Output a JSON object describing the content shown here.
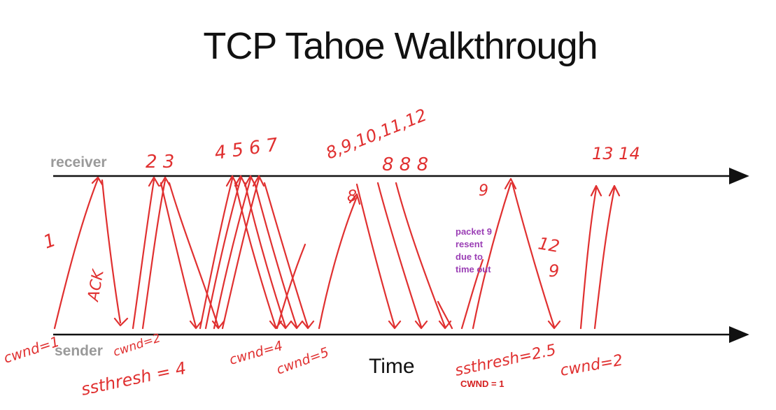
{
  "title": "TCP Tahoe Walkthrough",
  "timeline": {
    "receiver_label": "receiver",
    "sender_label": "sender",
    "time_label": "Time"
  },
  "printed_notes": {
    "resent_note": [
      "packet 9",
      "resent",
      "due to",
      "time out"
    ],
    "cwnd_reset": "CWND = 1"
  },
  "handwritten": {
    "send_1": "1",
    "ack_1": "ACK",
    "sent_2_3": "2 3",
    "sent_4_7": "4 5 6 7",
    "sent_8_12": "8,9,10,11,12",
    "acks_8": "8  8  8",
    "ack_8_single": "8",
    "packet_9_up": "9",
    "packet_12": "12",
    "ack_9_down": "9",
    "sent_13_14": "13 14",
    "cwnd_1": "cwnd=1",
    "cwnd_2": "cwnd=2",
    "ssthresh_4": "ssthresh = 4",
    "cwnd_4": "cwnd=4",
    "cwnd_5": "cwnd=5",
    "ssthresh_2_5": "ssthresh=2.5",
    "cwnd_2_final": "cwnd=2"
  },
  "colors": {
    "ink": "#e03030",
    "note_purple": "#9b3fb5",
    "axis_gray": "#9a9a9a",
    "line_black": "#111111"
  }
}
